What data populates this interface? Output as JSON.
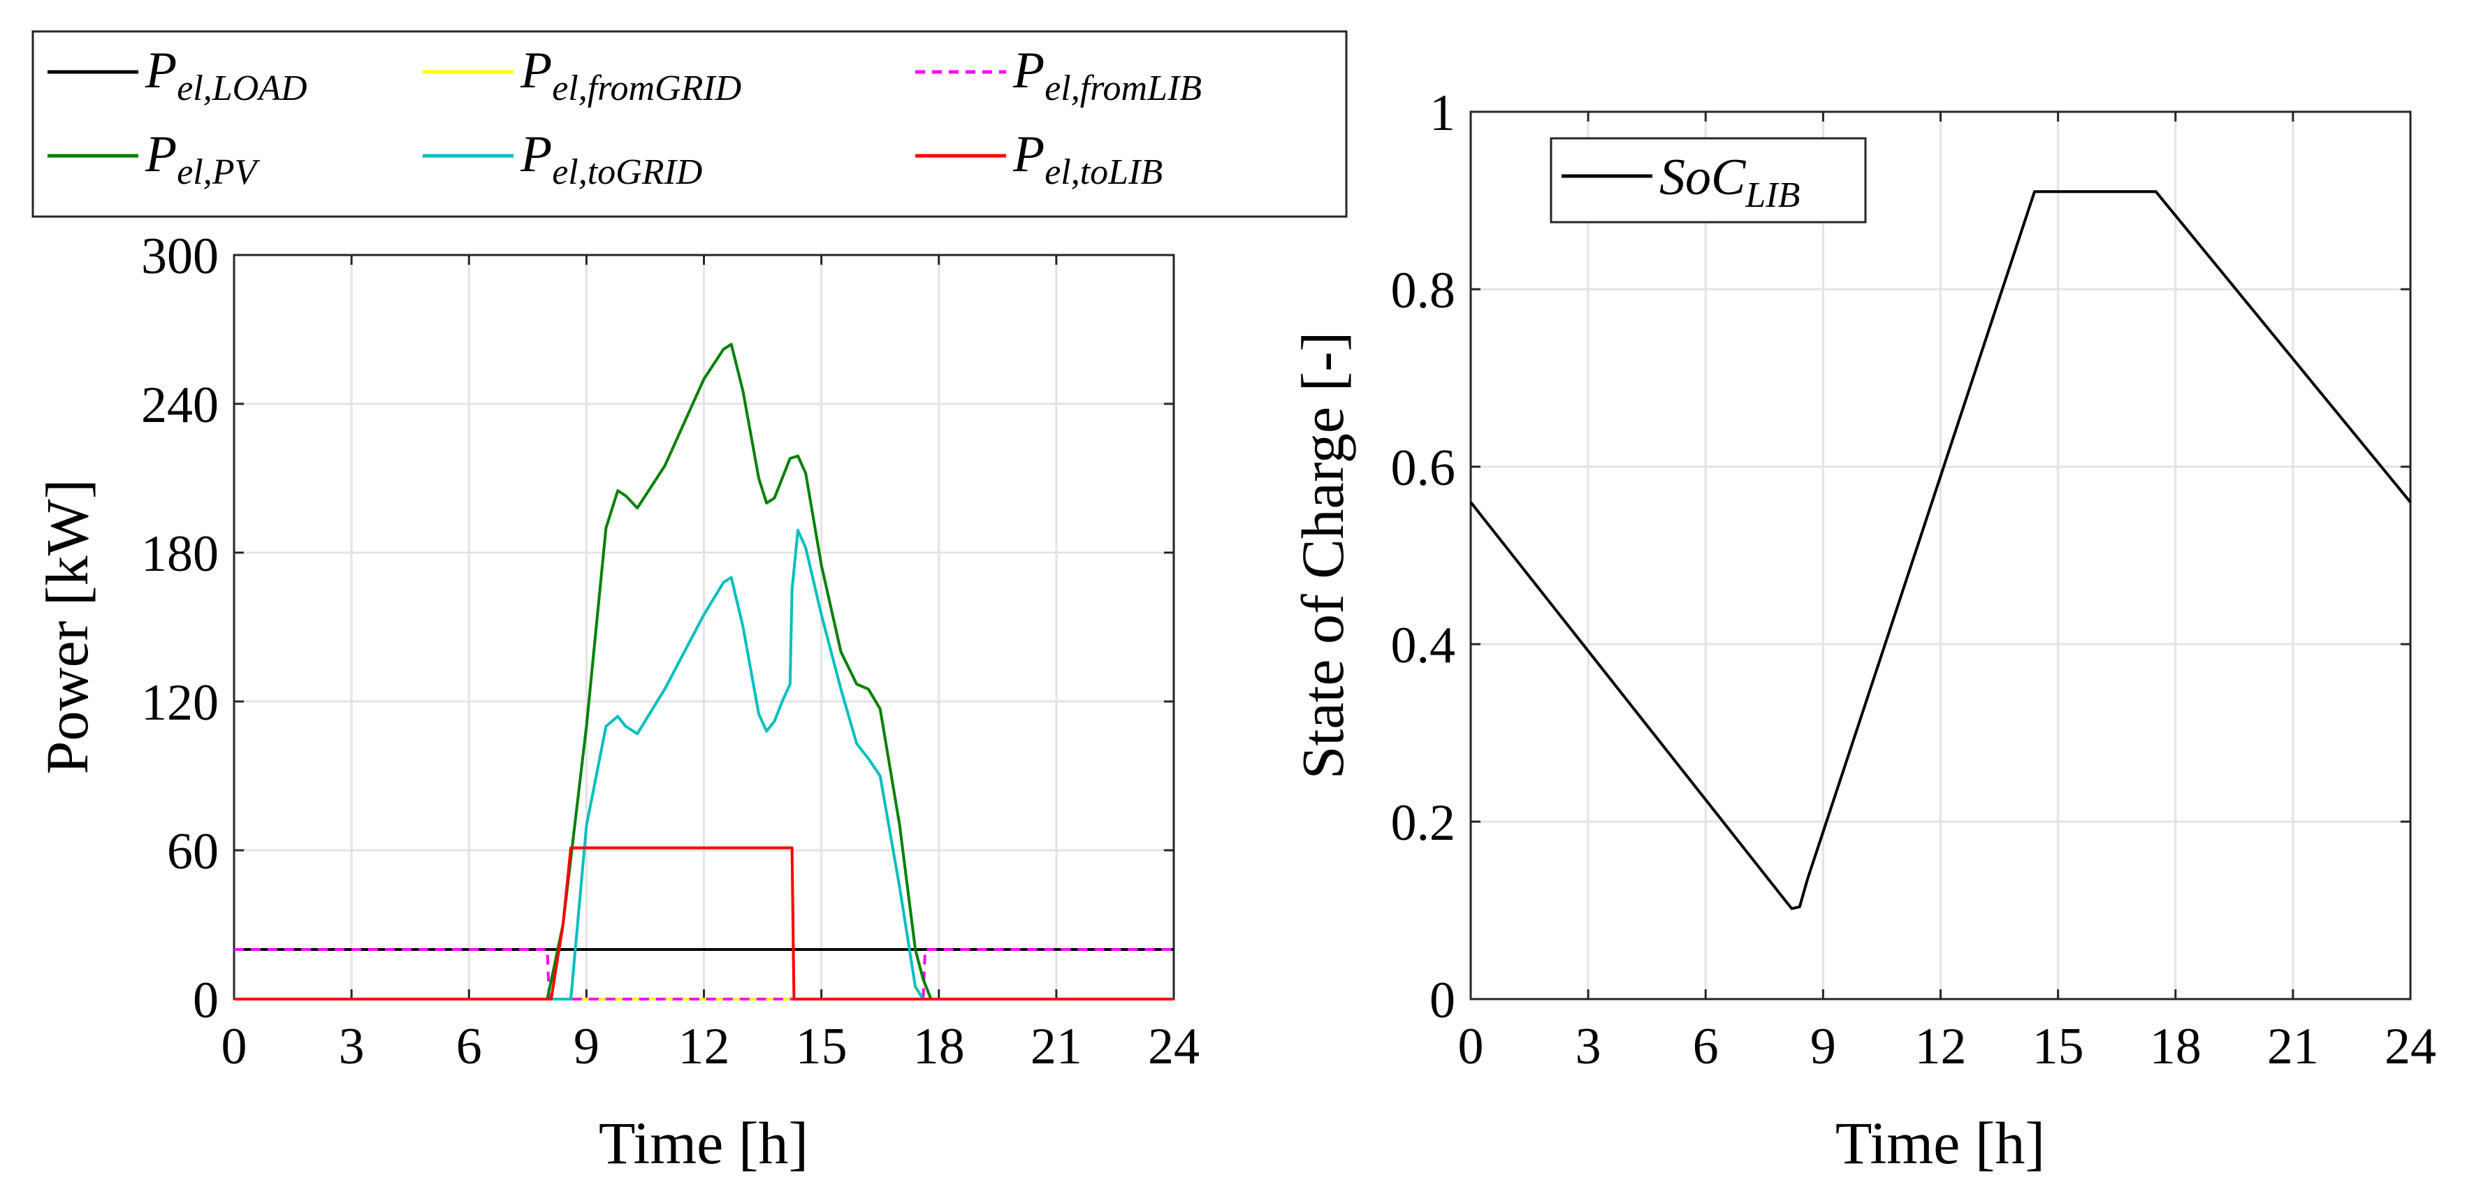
{
  "chart_data": [
    {
      "type": "line",
      "xlabel": "Time [h]",
      "ylabel": "Power [kW]",
      "xlim": [
        0,
        24
      ],
      "ylim": [
        0,
        300
      ],
      "xticks": [
        "0",
        "3",
        "6",
        "9",
        "12",
        "15",
        "18",
        "21",
        "24"
      ],
      "yticks": [
        "0",
        "60",
        "120",
        "180",
        "240",
        "300"
      ],
      "grid": true,
      "legend_position": "top (outside, above plot)",
      "series": [
        {
          "name": "P_el,LOAD",
          "label_main": "P",
          "label_sub": "el,LOAD",
          "color": "#000000",
          "dash": "solid",
          "x": [
            0,
            24
          ],
          "y": [
            20,
            20
          ]
        },
        {
          "name": "P_el,fromGRID",
          "label_main": "P",
          "label_sub": "el,fromGRID",
          "color": "#ffff00",
          "dash": "solid",
          "x": [
            0,
            7.9,
            8.0,
            17.5,
            17.6,
            24
          ],
          "y": [
            0,
            0,
            0,
            0,
            0,
            0
          ]
        },
        {
          "name": "P_el,fromLIB",
          "label_main": "P",
          "label_sub": "el,fromLIB",
          "color": "#ff00ff",
          "dash": "dashed",
          "x": [
            0,
            8.0,
            8.05,
            17.6,
            17.65,
            24
          ],
          "y": [
            20,
            20,
            0,
            0,
            20,
            20
          ]
        },
        {
          "name": "P_el,PV",
          "label_main": "P",
          "label_sub": "el,PV",
          "color": "#008000",
          "dash": "solid",
          "x": [
            0,
            8.0,
            8.4,
            9.0,
            9.5,
            9.8,
            10.0,
            10.3,
            11.0,
            12.0,
            12.5,
            12.7,
            13.0,
            13.4,
            13.6,
            13.8,
            14.2,
            14.4,
            14.6,
            15.0,
            15.5,
            15.9,
            16.2,
            16.5,
            17.0,
            17.4,
            17.6,
            17.8,
            24
          ],
          "y": [
            0,
            0,
            30,
            110,
            190,
            205,
            203,
            198,
            215,
            250,
            262,
            264,
            245,
            210,
            200,
            202,
            218,
            219,
            212,
            175,
            140,
            127,
            125,
            117,
            70,
            20,
            8,
            0,
            0
          ]
        },
        {
          "name": "P_el,toGRID",
          "label_main": "P",
          "label_sub": "el,toGRID",
          "color": "#00bfbf",
          "dash": "solid",
          "x": [
            0,
            8.6,
            9.0,
            9.5,
            9.8,
            10.0,
            10.3,
            11.0,
            12.0,
            12.5,
            12.7,
            13.0,
            13.4,
            13.6,
            13.8,
            14.0,
            14.2,
            14.25,
            14.4,
            14.6,
            15.0,
            15.5,
            15.9,
            16.2,
            16.5,
            17.0,
            17.4,
            17.6,
            24
          ],
          "y": [
            0,
            0,
            70,
            110,
            114,
            110,
            107,
            125,
            155,
            168,
            170,
            150,
            115,
            108,
            112,
            120,
            127,
            165,
            189,
            182,
            155,
            125,
            103,
            97,
            90,
            45,
            5,
            0,
            0
          ]
        },
        {
          "name": "P_el,toLIB",
          "label_main": "P",
          "label_sub": "el,toLIB",
          "color": "#ff0000",
          "dash": "solid",
          "x": [
            0,
            8.1,
            8.4,
            8.6,
            14.25,
            14.3,
            24
          ],
          "y": [
            0,
            0,
            30,
            61,
            61,
            0,
            0
          ]
        }
      ]
    },
    {
      "type": "line",
      "xlabel": "Time [h]",
      "ylabel": "State of Charge [-]",
      "xlim": [
        0,
        24
      ],
      "ylim": [
        0,
        1
      ],
      "xticks": [
        "0",
        "3",
        "6",
        "9",
        "12",
        "15",
        "18",
        "21",
        "24"
      ],
      "yticks": [
        "0",
        "0.2",
        "0.4",
        "0.6",
        "0.8",
        "1"
      ],
      "grid": true,
      "legend_position": "top-left (inside)",
      "series": [
        {
          "name": "SoC_LIB",
          "label_main": "SoC",
          "label_sub": "LIB",
          "color": "#000000",
          "dash": "solid",
          "x": [
            0,
            8.0,
            8.2,
            8.4,
            8.6,
            14.4,
            17.5,
            24
          ],
          "y": [
            0.56,
            0.113,
            0.102,
            0.104,
            0.135,
            0.91,
            0.91,
            0.56
          ]
        }
      ]
    }
  ]
}
